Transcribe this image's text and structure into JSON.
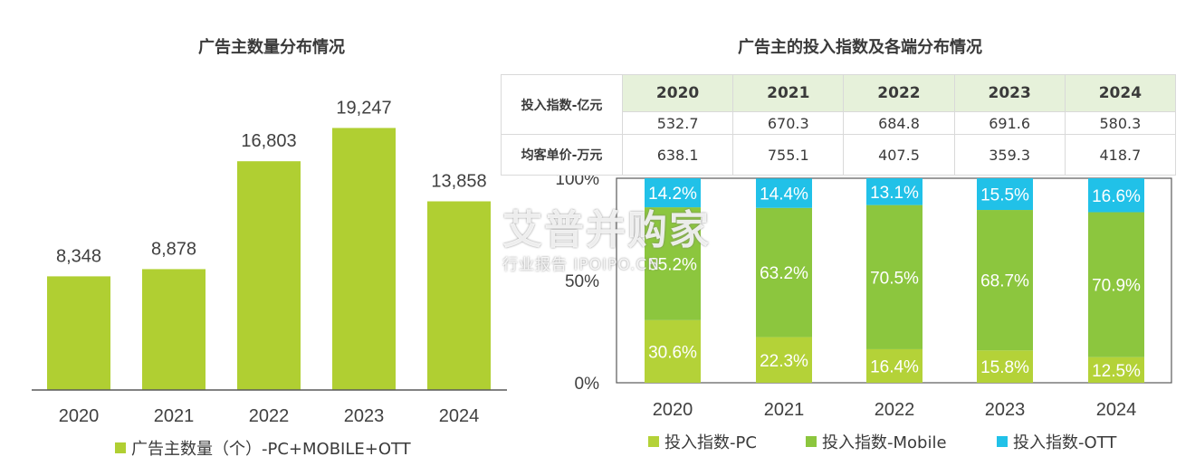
{
  "left_title": "广告主数量分布情况",
  "right_title": "广告主的投入指数及各端分布情况",
  "table": {
    "years": [
      "2020",
      "2021",
      "2022",
      "2023",
      "2024"
    ],
    "rows": [
      {
        "label": "投入指数-亿元",
        "values": [
          "532.7",
          "670.3",
          "684.8",
          "691.6",
          "580.3"
        ]
      },
      {
        "label": "均客单价-万元",
        "values": [
          "638.1",
          "755.1",
          "407.5",
          "359.3",
          "418.7"
        ]
      }
    ]
  },
  "watermark": {
    "main": "艾普并购家",
    "sub": "行业报告 IPOIPO.CN"
  },
  "colors": {
    "bar": "#b0cf32",
    "pc": "#b4d238",
    "mobile": "#8cc63e",
    "ott": "#21c1e8"
  },
  "chart_data": [
    {
      "type": "bar",
      "title": "广告主数量分布情况",
      "categories": [
        "2020",
        "2021",
        "2022",
        "2023",
        "2024"
      ],
      "values": [
        8348,
        8878,
        16803,
        19247,
        13858
      ],
      "value_labels": [
        "8,348",
        "8,878",
        "16,803",
        "19,247",
        "13,858"
      ],
      "series": [
        {
          "name": "广告主数量（个）-PC+MOBILE+OTT",
          "values": [
            8348,
            8878,
            16803,
            19247,
            13858
          ]
        }
      ],
      "ylim": [
        0,
        22000
      ],
      "legend": "bottom"
    },
    {
      "type": "bar",
      "stacked": true,
      "categories": [
        "2020",
        "2021",
        "2022",
        "2023",
        "2024"
      ],
      "y_ticks": [
        "0%",
        "50%",
        "100%"
      ],
      "ylim": [
        0,
        100
      ],
      "series": [
        {
          "name": "投入指数-PC",
          "values": [
            30.6,
            22.3,
            16.4,
            15.8,
            12.5
          ],
          "labels": [
            "30.6%",
            "22.3%",
            "16.4%",
            "15.8%",
            "12.5%"
          ]
        },
        {
          "name": "投入指数-Mobile",
          "values": [
            55.2,
            63.2,
            70.5,
            68.7,
            70.9
          ],
          "labels": [
            "55.2%",
            "63.2%",
            "70.5%",
            "68.7%",
            "70.9%"
          ]
        },
        {
          "name": "投入指数-OTT",
          "values": [
            14.2,
            14.4,
            13.1,
            15.5,
            16.6
          ],
          "labels": [
            "14.2%",
            "14.4%",
            "13.1%",
            "15.5%",
            "16.6%"
          ]
        }
      ],
      "legend": "bottom"
    }
  ]
}
